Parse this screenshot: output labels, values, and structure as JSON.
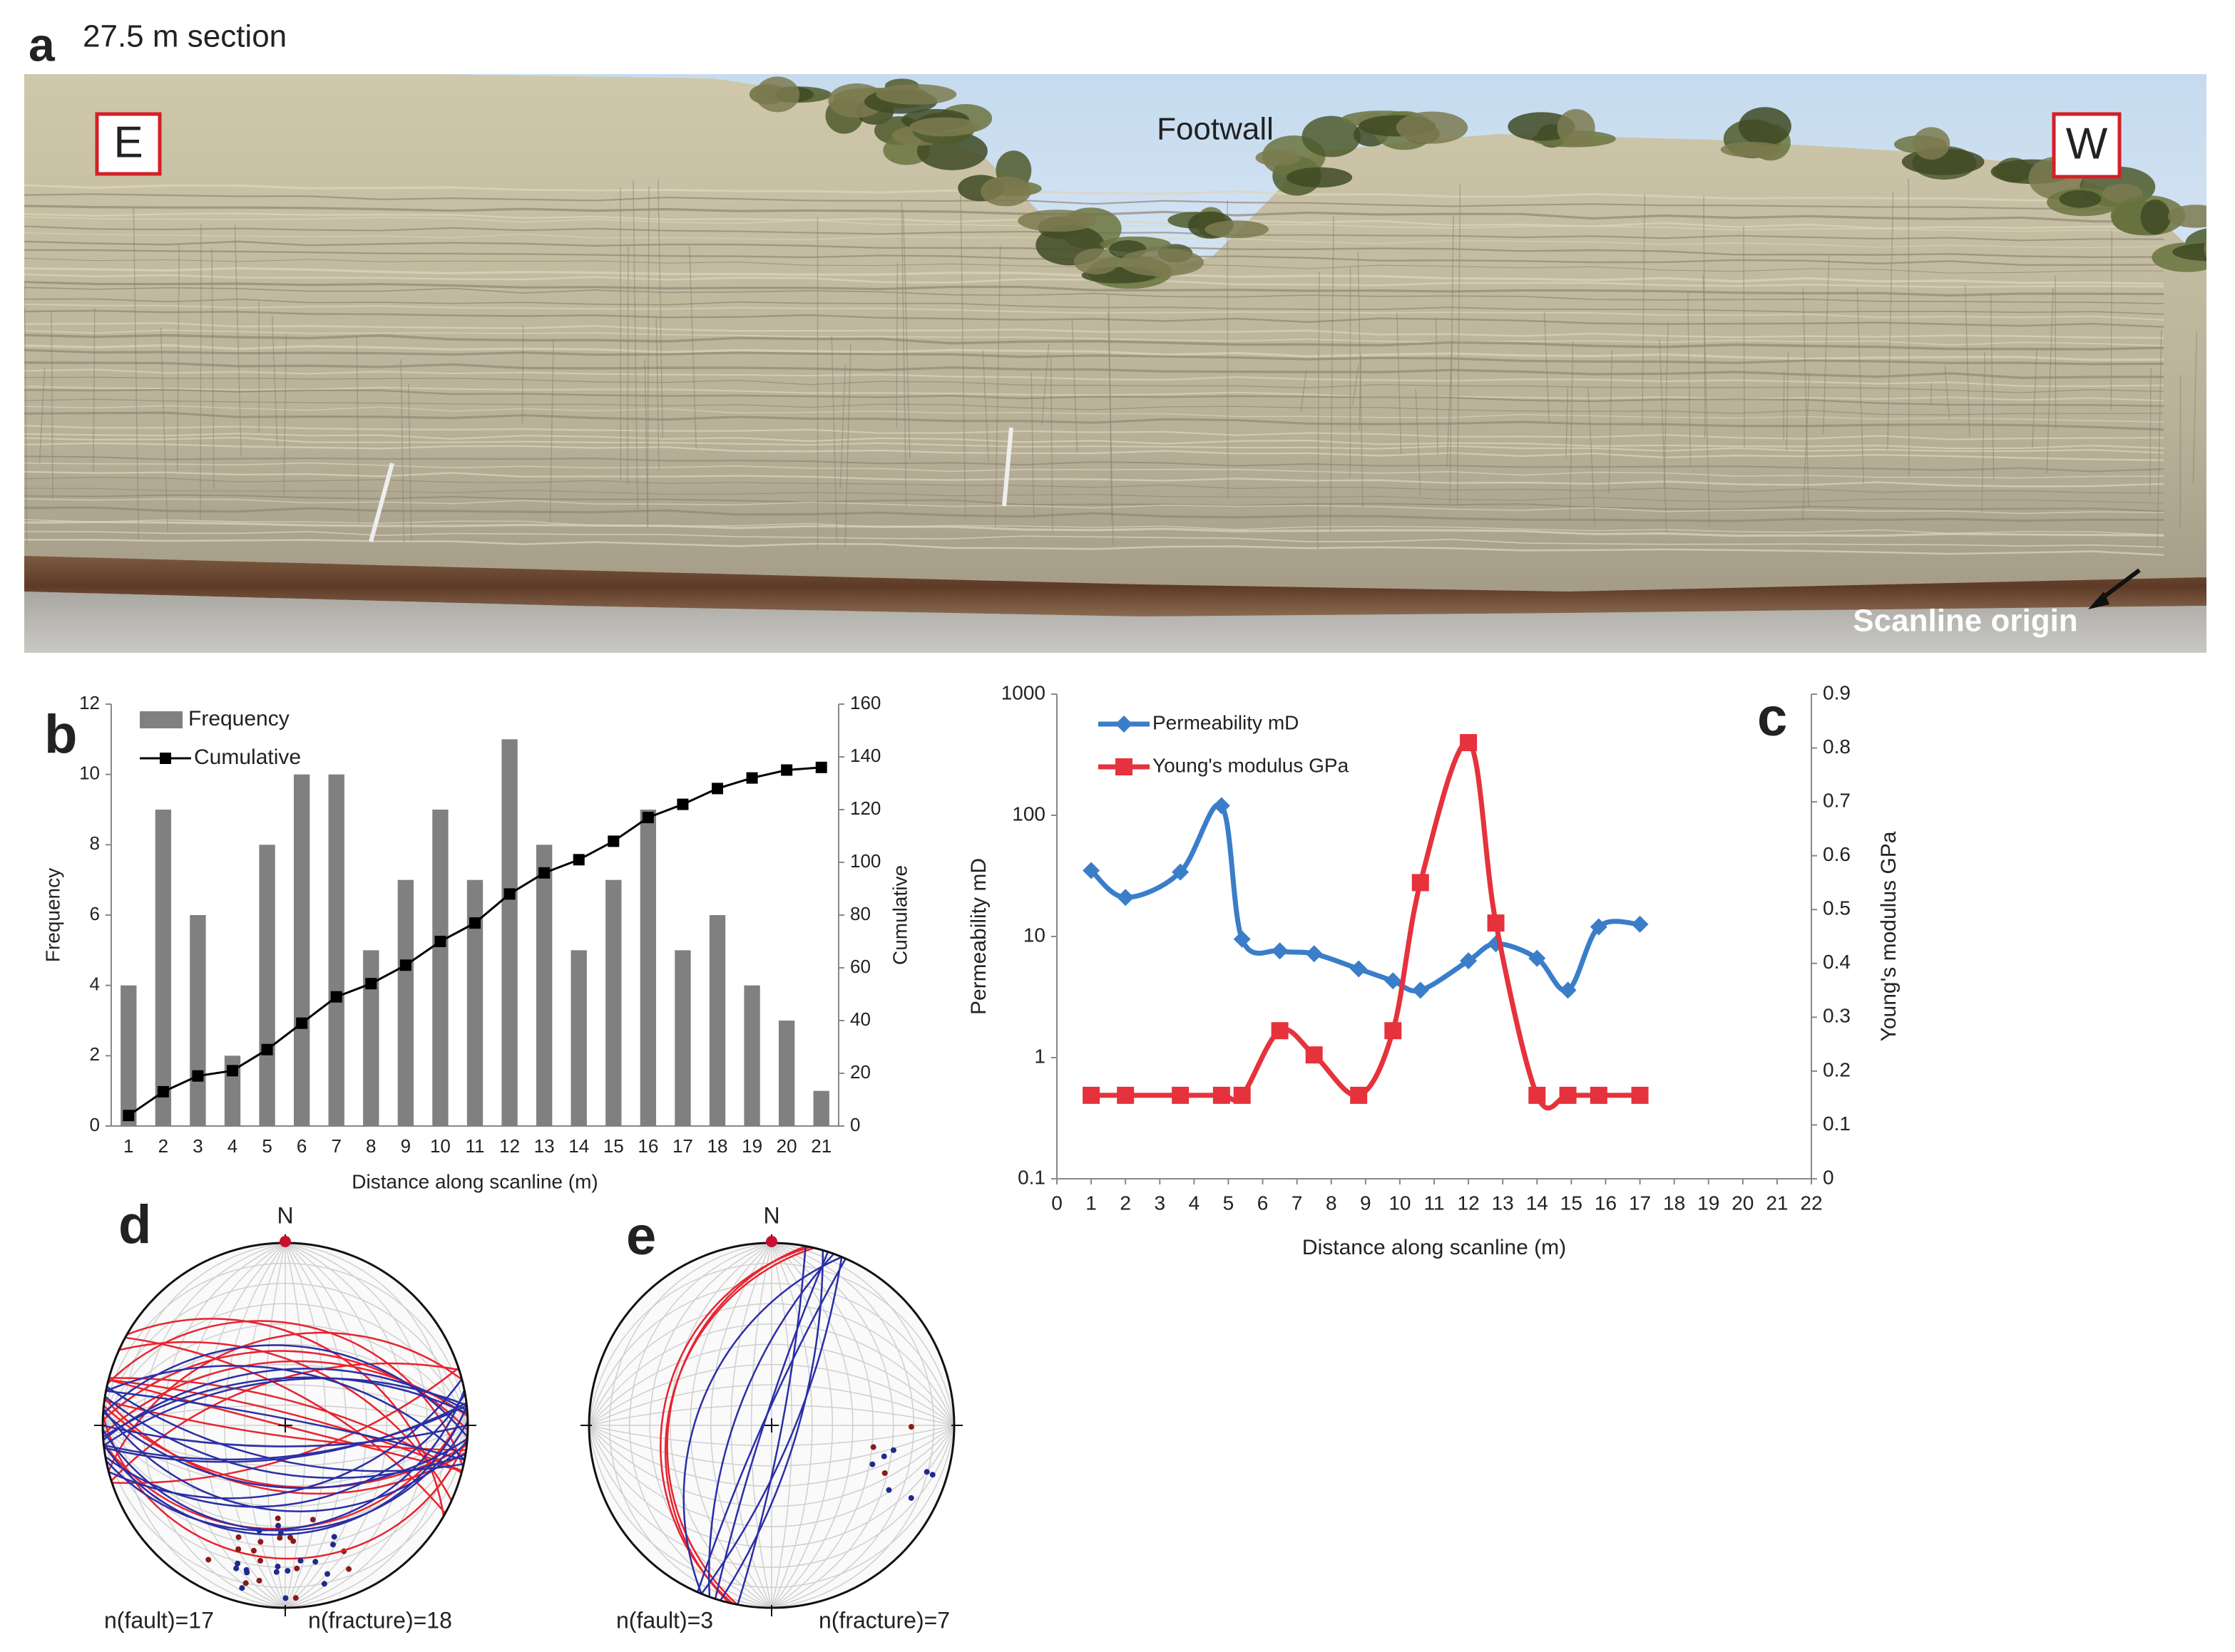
{
  "figure": {
    "panel_labels": [
      "a",
      "b",
      "c",
      "d",
      "e"
    ]
  },
  "photo": {
    "title": "27.5 m section",
    "left_label": "E",
    "right_label": "W",
    "center_label": "Footwall",
    "origin_label": "Scanline origin"
  },
  "chart_data": [
    {
      "type": "bar",
      "categories": [
        "1",
        "2",
        "3",
        "4",
        "5",
        "6",
        "7",
        "8",
        "9",
        "10",
        "11",
        "12",
        "13",
        "14",
        "15",
        "16",
        "17",
        "18",
        "19",
        "20",
        "21"
      ],
      "series": [
        {
          "name": "Frequency",
          "type": "bar",
          "color": "#808080",
          "values": [
            4,
            9,
            6,
            2,
            8,
            10,
            10,
            5,
            7,
            9,
            7,
            11,
            8,
            5,
            7,
            9,
            5,
            6,
            4,
            3,
            1
          ]
        },
        {
          "name": "Cumulative",
          "type": "line",
          "axis": "y2",
          "color": "#000000",
          "marker": "square",
          "values": [
            4,
            13,
            19,
            21,
            29,
            39,
            49,
            54,
            61,
            70,
            77,
            88,
            96,
            101,
            108,
            117,
            122,
            128,
            132,
            135,
            136
          ]
        }
      ],
      "ylim": [
        0,
        12
      ],
      "yticks": [
        0,
        2,
        4,
        6,
        8,
        10,
        12
      ],
      "y2lim": [
        0,
        160
      ],
      "y2ticks": [
        0,
        20,
        40,
        60,
        80,
        100,
        120,
        140,
        160
      ],
      "x_label": "Distance along scanline (m)",
      "y_label": "Frequency",
      "y2_label": "Cumulative",
      "legend": "upper left",
      "grid": false
    },
    {
      "type": "line",
      "x": [
        1,
        2,
        3.6,
        4.8,
        5.4,
        6.5,
        7.5,
        8.8,
        9.8,
        10.6,
        12,
        12.8,
        14,
        14.9,
        15.8,
        17
      ],
      "series": [
        {
          "name": "Permeability mD",
          "color": "#3a7dc9",
          "marker": "diamond",
          "smooth": true,
          "values": [
            35,
            21,
            34,
            120,
            9.5,
            7.6,
            7.2,
            5.4,
            4.3,
            3.6,
            6.3,
            8.7,
            6.6,
            3.6,
            12,
            12.6
          ]
        },
        {
          "name": "Young's modulus GPa",
          "axis": "y2",
          "color": "#e5323c",
          "marker": "square",
          "smooth": true,
          "values": [
            0.155,
            0.155,
            0.155,
            0.155,
            0.155,
            0.275,
            0.23,
            0.155,
            0.275,
            0.55,
            0.81,
            0.475,
            0.155,
            0.155,
            0.155,
            0.155
          ]
        }
      ],
      "xlim": [
        0,
        22
      ],
      "xticks": [
        0,
        1,
        2,
        3,
        4,
        5,
        6,
        7,
        8,
        9,
        10,
        11,
        12,
        13,
        14,
        15,
        16,
        17,
        18,
        19,
        20,
        21,
        22
      ],
      "ylim": [
        0.1,
        1000
      ],
      "yticks": [
        0.1,
        1,
        10,
        100,
        1000
      ],
      "log_y": true,
      "y2lim": [
        0,
        0.9
      ],
      "y2ticks": [
        0,
        0.1,
        0.2,
        0.3,
        0.4,
        0.5,
        0.6,
        0.7,
        0.8,
        0.9
      ],
      "x_label": "Distance along scanline (m)",
      "y_label": "Permeability mD",
      "y2_label": "Young's modulus GPa",
      "legend": "upper left",
      "grid": false
    }
  ],
  "stereonets": [
    {
      "north": "N",
      "fault_count": "n(fault)=17",
      "fracture_count": "n(fracture)=18"
    },
    {
      "north": "N",
      "fault_count": "n(fault)=3",
      "fracture_count": "n(fracture)=7"
    }
  ]
}
